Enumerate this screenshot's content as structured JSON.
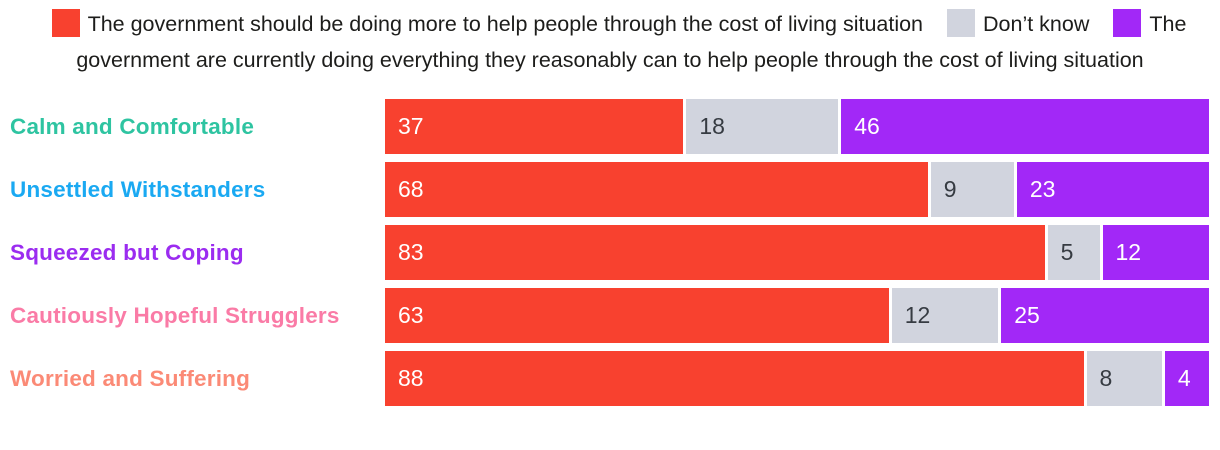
{
  "legend": {
    "items": [
      {
        "name": "should-do-more",
        "label": "The government should be doing more to help people through the cost of living situation",
        "color": "#F8412F"
      },
      {
        "name": "dont-know",
        "label": "Don’t know",
        "color": "#D1D4DE"
      },
      {
        "name": "doing-everything",
        "label": "The government are currently doing everything they reasonably can to help people through the cost of living situation",
        "color": "#A228F7"
      }
    ]
  },
  "chart_data": {
    "type": "bar",
    "orientation": "horizontal",
    "stacked": true,
    "units": "percent",
    "axis_range": [
      0,
      100
    ],
    "grid": false,
    "legend_position": "top-center",
    "categories": [
      {
        "label": "Calm and Comfortable",
        "color": "#2EC4A1"
      },
      {
        "label": "Unsettled Withstanders",
        "color": "#1AA9F2"
      },
      {
        "label": "Squeezed but Coping",
        "color": "#9B2CF0"
      },
      {
        "label": "Cautiously Hopeful Strugglers",
        "color": "#FA7BA6"
      },
      {
        "label": "Worried and Suffering",
        "color": "#FB8A76"
      }
    ],
    "series": [
      {
        "name": "The government should be doing more to help people through the cost of living situation",
        "color": "#F8412F",
        "value_text_color": "#ffffff",
        "values": [
          37,
          68,
          83,
          63,
          88
        ]
      },
      {
        "name": "Don’t know",
        "color": "#D1D4DE",
        "value_text_color": "#363B42",
        "values": [
          18,
          9,
          5,
          12,
          8
        ]
      },
      {
        "name": "The government are currently doing everything they reasonably can to help people through the cost of living situation",
        "color": "#A228F7",
        "value_text_color": "#ffffff",
        "values": [
          46,
          23,
          12,
          25,
          4
        ]
      }
    ]
  }
}
